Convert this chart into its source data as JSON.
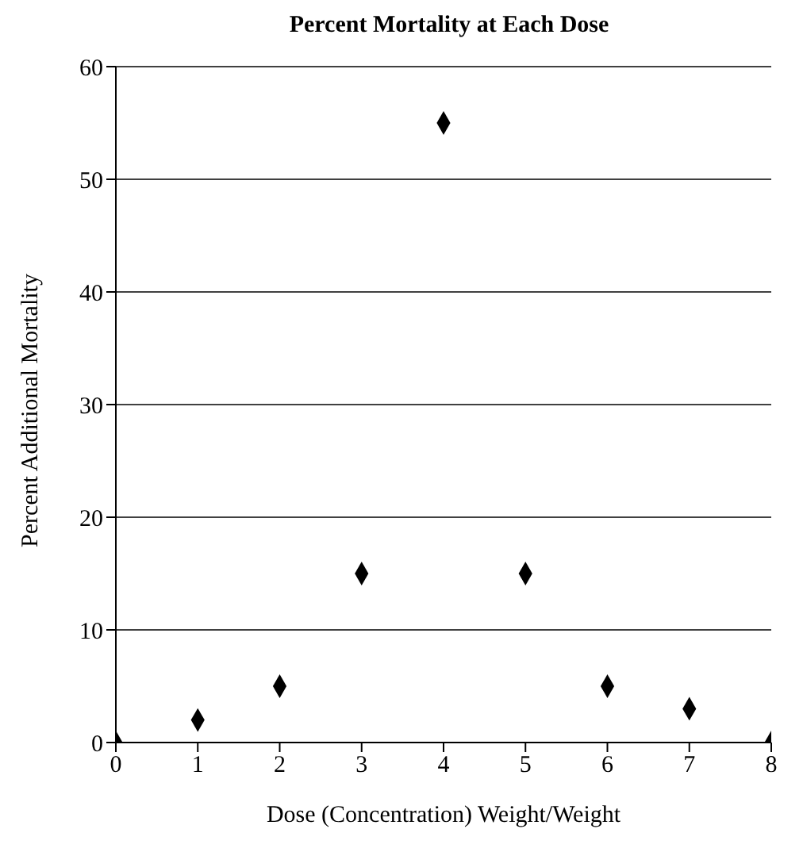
{
  "chart_data": {
    "type": "scatter",
    "title": "Percent Mortality at Each Dose",
    "xlabel": "Dose (Concentration) Weight/Weight",
    "ylabel": "Percent Additional Mortality",
    "x": [
      0,
      1,
      2,
      3,
      4,
      5,
      6,
      7,
      8
    ],
    "series": [
      {
        "color": "#000000",
        "values": [
          0,
          2,
          5,
          15,
          55,
          15,
          5,
          3,
          0
        ]
      }
    ],
    "xlim": [
      0,
      8
    ],
    "xticks": [
      0,
      1,
      2,
      3,
      4,
      5,
      6,
      7,
      8
    ],
    "ylim": [
      0,
      60
    ],
    "yticks": [
      0,
      10,
      20,
      30,
      40,
      50,
      60
    ],
    "grid": "y",
    "marker": "diamond",
    "legend": false
  }
}
